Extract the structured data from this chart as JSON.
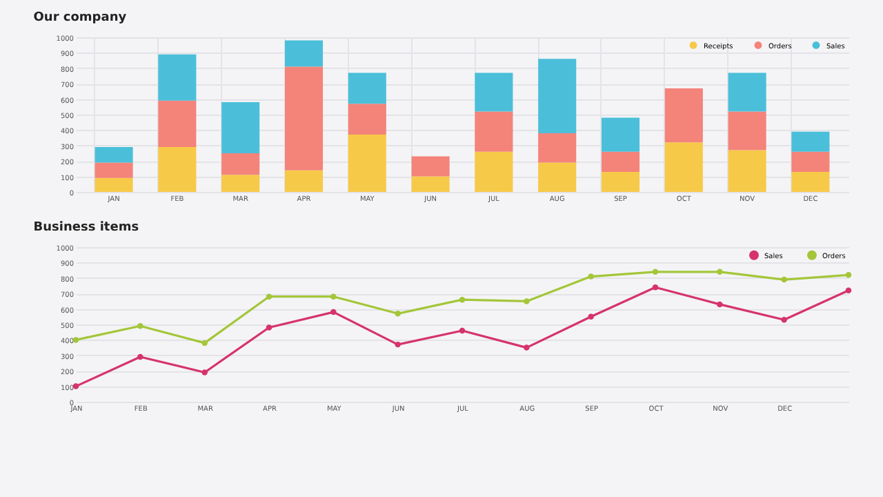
{
  "chart_data": [
    {
      "type": "bar",
      "title": "Our company",
      "stacked": true,
      "grid": true,
      "legend": "top right",
      "categories": [
        "JAN",
        "FEB",
        "MAR",
        "APR",
        "MAY",
        "JUN",
        "JUL",
        "AUG",
        "SEP",
        "OCT",
        "NOV",
        "DEC"
      ],
      "ylim": [
        0,
        1000
      ],
      "yticks": [
        0,
        100,
        200,
        300,
        400,
        500,
        600,
        700,
        800,
        900,
        1000
      ],
      "series": [
        {
          "name": "Receipts",
          "color": "#f7c948",
          "values": [
            90,
            290,
            110,
            140,
            370,
            100,
            260,
            190,
            130,
            320,
            270,
            130
          ]
        },
        {
          "name": "Orders",
          "color": "#f4837a",
          "values": [
            100,
            300,
            140,
            670,
            200,
            130,
            260,
            190,
            130,
            350,
            250,
            130
          ]
        },
        {
          "name": "Sales",
          "color": "#4bbfd9",
          "values": [
            100,
            300,
            330,
            170,
            200,
            null,
            250,
            480,
            220,
            null,
            250,
            130
          ]
        }
      ]
    },
    {
      "type": "line",
      "title": "Business items",
      "grid": "y",
      "legend": "top right",
      "marker": "circle",
      "categories": [
        "JAN",
        "FEB",
        "MAR",
        "APR",
        "MAY",
        "JUN",
        "JUL",
        "AUG",
        "SEP",
        "OCT",
        "NOV",
        "DEC",
        null
      ],
      "ylim": [
        0,
        1000
      ],
      "yticks": [
        0,
        100,
        200,
        300,
        400,
        500,
        600,
        700,
        800,
        900,
        1000
      ],
      "series": [
        {
          "name": "Sales",
          "color": "#d6336c",
          "values": [
            100,
            290,
            190,
            480,
            580,
            370,
            460,
            350,
            550,
            740,
            630,
            530,
            720
          ]
        },
        {
          "name": "Orders",
          "color": "#a4c639",
          "values": [
            400,
            490,
            380,
            680,
            680,
            570,
            660,
            650,
            810,
            840,
            840,
            790,
            820
          ]
        }
      ]
    }
  ]
}
